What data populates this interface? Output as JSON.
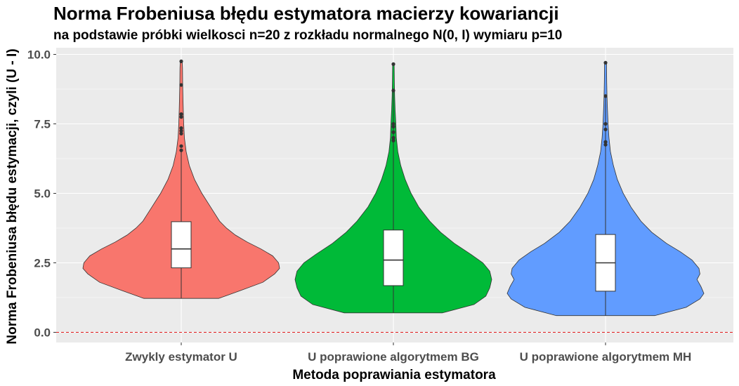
{
  "title": "Norma Frobeniusa błędu estymatora macierzy kowariancji",
  "subtitle": "na podstawie próbki wielkosci n=20 z rozkładu normalnego N(0, I) wymiaru p=10",
  "chart_data": {
    "type": "violin",
    "xlabel": "Metoda poprawiania estymatora",
    "ylabel": "Norma Frobeniusa błędu estymacji, czyli (U - I)",
    "ylim": [
      -0.2,
      10.2
    ],
    "yticks": [
      0.0,
      2.5,
      5.0,
      7.5,
      10.0
    ],
    "ytick_labels": [
      "0.0",
      "2.5",
      "5.0",
      "7.5",
      "10.0"
    ],
    "reference_line": {
      "y": 0.0,
      "color": "#e31a1c",
      "style": "dashed"
    },
    "categories": [
      "Zwykly estymator U",
      "U poprawione algorytmem BG",
      "U poprawione algorytmem MH"
    ],
    "colors": [
      "#F8766D",
      "#00BA38",
      "#619CFF"
    ],
    "series": [
      {
        "min": 1.22,
        "q1": 2.32,
        "median": 3.0,
        "q3": 3.98,
        "max": 9.75,
        "whisker_low": 1.22,
        "whisker_high": 6.5,
        "outliers": [
          6.55,
          6.7,
          7.15,
          7.25,
          7.35,
          7.75,
          7.85,
          8.9,
          9.75
        ],
        "density": [
          [
            1.22,
            0.38
          ],
          [
            1.5,
            0.6
          ],
          [
            1.8,
            0.83
          ],
          [
            2.1,
            0.95
          ],
          [
            2.3,
            1.0
          ],
          [
            2.5,
            0.99
          ],
          [
            2.75,
            0.93
          ],
          [
            3.0,
            0.81
          ],
          [
            3.25,
            0.67
          ],
          [
            3.5,
            0.55
          ],
          [
            3.75,
            0.46
          ],
          [
            4.0,
            0.39
          ],
          [
            4.5,
            0.3
          ],
          [
            5.0,
            0.21
          ],
          [
            5.5,
            0.135
          ],
          [
            6.0,
            0.082
          ],
          [
            6.5,
            0.05
          ],
          [
            7.0,
            0.032
          ],
          [
            7.5,
            0.025
          ],
          [
            8.0,
            0.021
          ],
          [
            8.5,
            0.017
          ],
          [
            9.0,
            0.014
          ],
          [
            9.5,
            0.013
          ],
          [
            9.75,
            0.01
          ]
        ]
      },
      {
        "min": 0.7,
        "q1": 1.68,
        "median": 2.6,
        "q3": 3.68,
        "max": 9.65,
        "whisker_low": 0.7,
        "whisker_high": 8.7,
        "outliers": [
          6.9,
          7.0,
          7.2,
          7.4,
          7.5,
          8.7,
          9.65
        ],
        "density": [
          [
            0.7,
            0.5
          ],
          [
            1.0,
            0.82
          ],
          [
            1.3,
            0.94
          ],
          [
            1.6,
            0.98
          ],
          [
            1.9,
            1.0
          ],
          [
            2.2,
            0.98
          ],
          [
            2.5,
            0.91
          ],
          [
            2.8,
            0.79
          ],
          [
            3.2,
            0.62
          ],
          [
            3.6,
            0.48
          ],
          [
            4.0,
            0.37
          ],
          [
            4.5,
            0.26
          ],
          [
            5.0,
            0.18
          ],
          [
            5.5,
            0.12
          ],
          [
            6.0,
            0.075
          ],
          [
            6.5,
            0.045
          ],
          [
            7.0,
            0.03
          ],
          [
            7.5,
            0.025
          ],
          [
            8.0,
            0.018
          ],
          [
            8.5,
            0.013
          ],
          [
            9.0,
            0.01
          ],
          [
            9.65,
            0.008
          ]
        ]
      },
      {
        "min": 0.6,
        "q1": 1.48,
        "median": 2.5,
        "q3": 3.52,
        "max": 9.7,
        "whisker_low": 0.6,
        "whisker_high": 8.5,
        "outliers": [
          6.75,
          6.85,
          7.3,
          7.5,
          8.5,
          9.7
        ],
        "density": [
          [
            0.6,
            0.5
          ],
          [
            0.9,
            0.82
          ],
          [
            1.2,
            0.96
          ],
          [
            1.4,
            1.0
          ],
          [
            1.65,
            0.97
          ],
          [
            1.9,
            0.93
          ],
          [
            2.1,
            0.96
          ],
          [
            2.3,
            0.95
          ],
          [
            2.6,
            0.88
          ],
          [
            2.9,
            0.76
          ],
          [
            3.2,
            0.62
          ],
          [
            3.6,
            0.47
          ],
          [
            4.0,
            0.36
          ],
          [
            4.5,
            0.26
          ],
          [
            5.0,
            0.18
          ],
          [
            5.5,
            0.12
          ],
          [
            6.0,
            0.08
          ],
          [
            6.5,
            0.05
          ],
          [
            7.0,
            0.035
          ],
          [
            7.5,
            0.026
          ],
          [
            8.0,
            0.02
          ],
          [
            8.5,
            0.015
          ],
          [
            9.0,
            0.012
          ],
          [
            9.7,
            0.01
          ]
        ]
      }
    ]
  }
}
